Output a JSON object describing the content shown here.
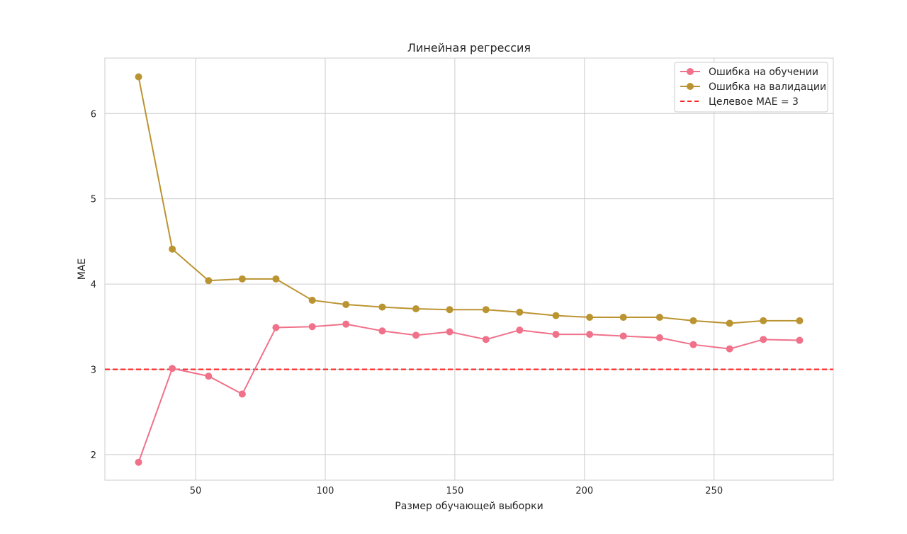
{
  "chart_data": {
    "type": "line",
    "title": "Линейная регрессия",
    "xlabel": "Размер обучающей выборки",
    "ylabel": "MAE",
    "xlim": [
      15,
      296
    ],
    "ylim": [
      1.7,
      6.65
    ],
    "xticks": [
      50,
      100,
      150,
      200,
      250
    ],
    "yticks": [
      2,
      3,
      4,
      5,
      6
    ],
    "grid": true,
    "legend_position": "top-right",
    "x": [
      28,
      41,
      55,
      68,
      81,
      95,
      108,
      122,
      135,
      148,
      162,
      175,
      189,
      202,
      215,
      229,
      242,
      256,
      269,
      283
    ],
    "series": [
      {
        "name": "Ошибка на обучении",
        "color": "#f0718a",
        "marker": "circle",
        "values": [
          1.91,
          3.01,
          2.92,
          2.71,
          3.49,
          3.5,
          3.53,
          3.45,
          3.4,
          3.44,
          3.35,
          3.46,
          3.41,
          3.41,
          3.39,
          3.37,
          3.29,
          3.24,
          3.35,
          3.34
        ]
      },
      {
        "name": "Ошибка на валидации",
        "color": "#bb9432",
        "marker": "circle",
        "values": [
          6.43,
          4.41,
          4.04,
          4.06,
          4.06,
          3.81,
          3.76,
          3.73,
          3.71,
          3.7,
          3.7,
          3.67,
          3.63,
          3.61,
          3.61,
          3.61,
          3.57,
          3.54,
          3.57,
          3.57
        ]
      }
    ],
    "reference_line": {
      "name": "Целевое MAE = 3",
      "value": 3,
      "color": "#ff2020",
      "style": "dashed"
    }
  }
}
